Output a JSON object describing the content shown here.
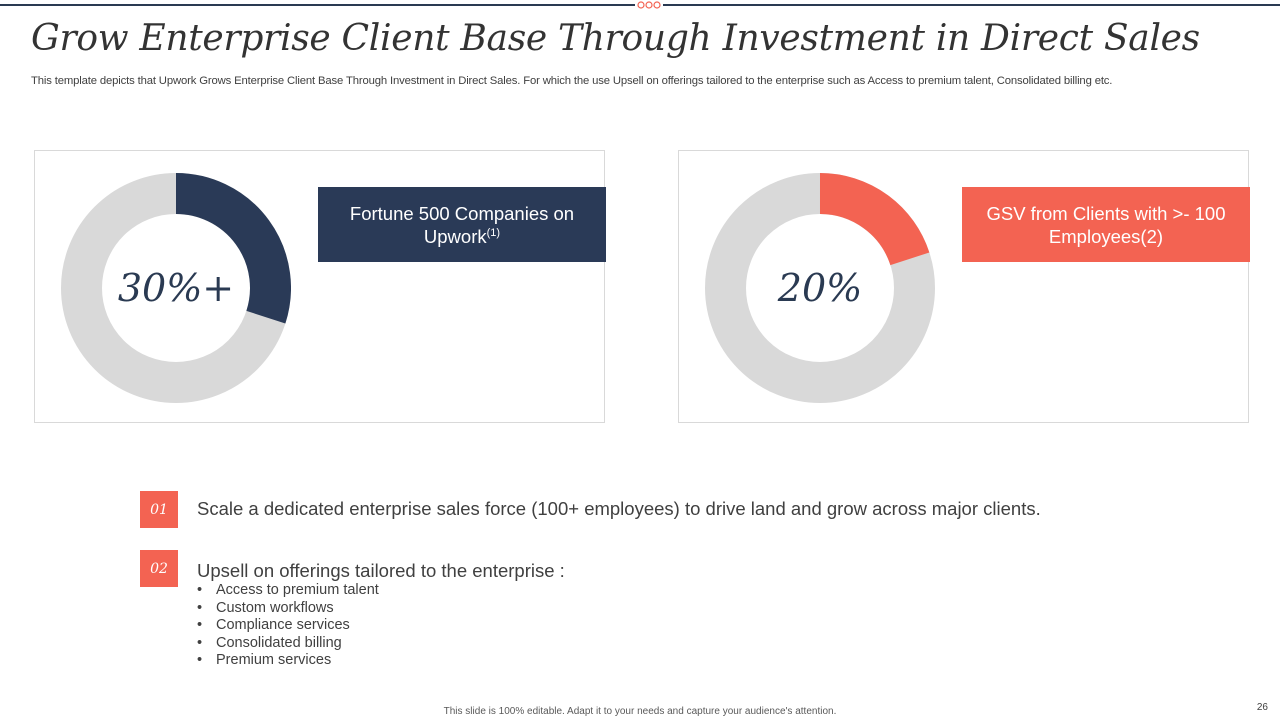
{
  "slide": {
    "title": "Grow Enterprise Client Base Through Investment in Direct Sales",
    "subtitle": "This template depicts that Upwork Grows Enterprise Client Base Through Investment in Direct Sales. For which the use Upsell on offerings tailored to the enterprise such as Access to premium talent, Consolidated billing etc.",
    "footer": "This slide is 100% editable. Adapt it to your needs and capture your audience's attention.",
    "page_number": "26"
  },
  "colors": {
    "navy": "#2a3a57",
    "coral": "#f36352",
    "donut_track": "#d9d9d9"
  },
  "cards": [
    {
      "percent": 0.3,
      "center_label": "30%+",
      "label_main": "Fortune 500 Companies on Upwork",
      "label_sup": "(1)",
      "color": "#2a3a57"
    },
    {
      "percent": 0.2,
      "center_label": "20%",
      "label_main": "GSV from Clients with >- 100 Employees(2)",
      "label_sup": "",
      "color": "#f36352"
    }
  ],
  "points": [
    {
      "number": "01",
      "text": "Scale a dedicated enterprise sales force (100+ employees) to drive land and grow across major clients."
    },
    {
      "number": "02",
      "text": "Upsell on offerings tailored to the enterprise :",
      "bullets": [
        "Access to premium talent",
        "Custom workflows",
        "Compliance services",
        "Consolidated billing",
        "Premium services"
      ]
    }
  ]
}
